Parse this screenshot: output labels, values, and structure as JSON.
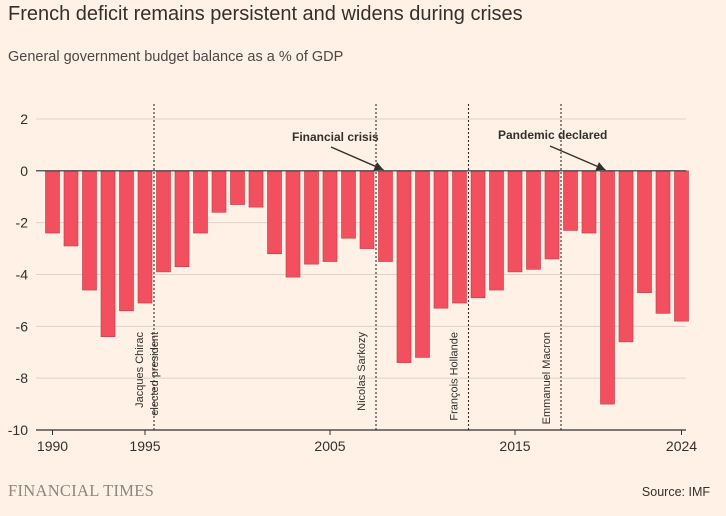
{
  "header": {
    "title": "French deficit remains persistent and widens during crises",
    "subtitle": "General government budget balance as a % of GDP"
  },
  "footer": {
    "brand": "FINANCIAL TIMES",
    "source": "Source: IMF"
  },
  "colors": {
    "background": "#fff1e5",
    "bar": "#f2505f",
    "bar_stroke": "#c23a47",
    "grid": "#e0d3c8",
    "zero_line": "#33302e",
    "text": "#33302e"
  },
  "chart_data": {
    "type": "bar",
    "title": "French deficit remains persistent and widens during crises",
    "xlabel": "",
    "ylabel": "",
    "ylim": [
      -10,
      2
    ],
    "yticks": [
      2,
      0,
      -2,
      -4,
      -6,
      -8,
      -10
    ],
    "xticks": [
      1990,
      1995,
      2005,
      2015,
      2024
    ],
    "grid": true,
    "categories": [
      1990,
      1991,
      1992,
      1993,
      1994,
      1995,
      1996,
      1997,
      1998,
      1999,
      2000,
      2001,
      2002,
      2003,
      2004,
      2005,
      2006,
      2007,
      2008,
      2009,
      2010,
      2011,
      2012,
      2013,
      2014,
      2015,
      2016,
      2017,
      2018,
      2019,
      2020,
      2021,
      2022,
      2023,
      2024
    ],
    "values": [
      -2.4,
      -2.9,
      -4.6,
      -6.4,
      -5.4,
      -5.1,
      -3.9,
      -3.7,
      -2.4,
      -1.6,
      -1.3,
      -1.4,
      -3.2,
      -4.1,
      -3.6,
      -3.5,
      -2.6,
      -3.0,
      -3.5,
      -7.4,
      -7.2,
      -5.3,
      -5.1,
      -4.9,
      -4.6,
      -3.9,
      -3.8,
      -3.4,
      -2.3,
      -2.4,
      -9.0,
      -6.6,
      -4.7,
      -5.5,
      -5.8
    ],
    "events": [
      {
        "year": 1995,
        "label_lines": [
          "Jacques Chirac",
          "elected president"
        ]
      },
      {
        "year": 2007,
        "label_lines": [
          "Nicolas Sarkozy"
        ]
      },
      {
        "year": 2012,
        "label_lines": [
          "François Hollande"
        ]
      },
      {
        "year": 2017,
        "label_lines": [
          "Emmanuel Macron"
        ]
      }
    ],
    "annotations": [
      {
        "text": "Financial crisis",
        "target_year": 2008,
        "target_value": 0
      },
      {
        "text": "Pandemic declared",
        "target_year": 2020,
        "target_value": 0
      }
    ]
  }
}
